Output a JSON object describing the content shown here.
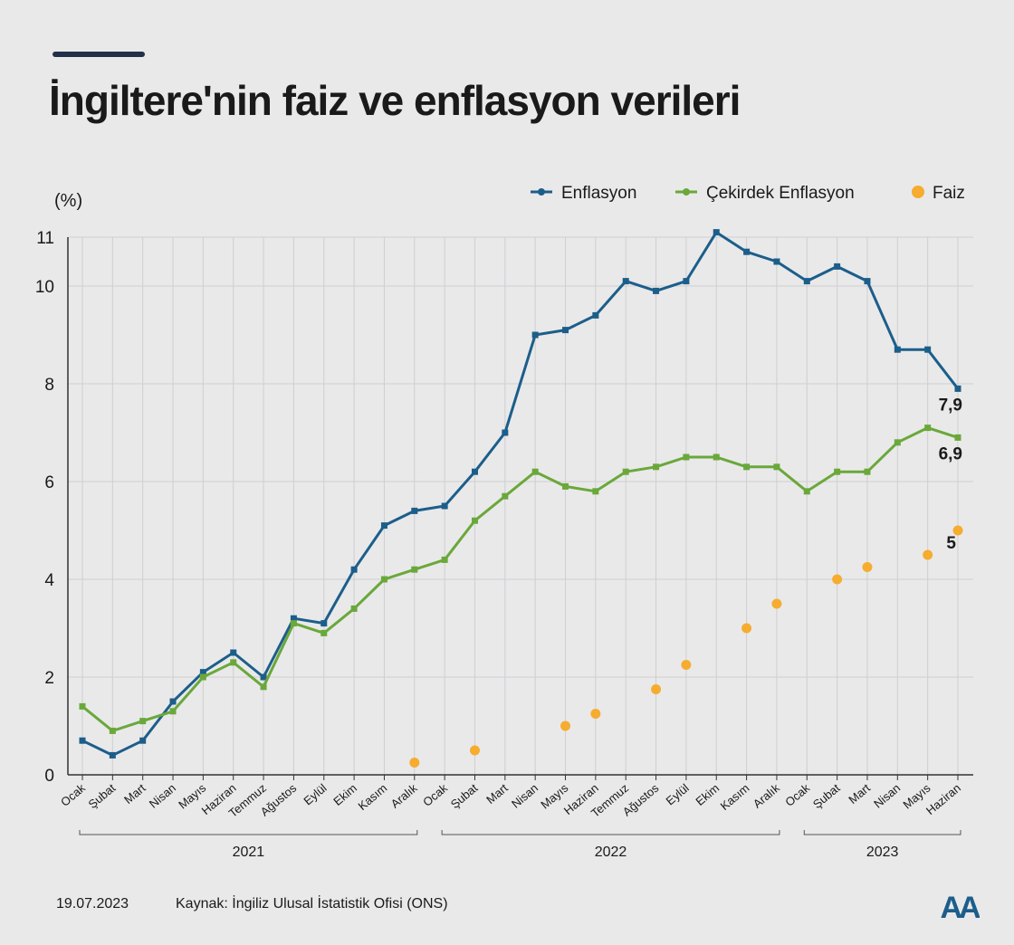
{
  "title": "İngiltere'nin faiz ve enflasyon verileri",
  "colors": {
    "accent": "#22304a",
    "inflation": "#1c5e8a",
    "core": "#6aa83a",
    "rate": "#f6ac2f",
    "grid": "#cfcfd1",
    "axis": "#333333"
  },
  "footer": {
    "date": "19.07.2023",
    "source": "Kaynak: İngiliz Ulusal İstatistik Ofisi (ONS)"
  },
  "logo": {
    "text": "AA"
  },
  "chart_data": {
    "type": "line",
    "ylabel": "(%)",
    "ylim": [
      0,
      11
    ],
    "yticks": [
      0,
      2,
      4,
      6,
      8,
      10,
      11
    ],
    "grid": true,
    "legend_position": "top-right",
    "categories": [
      "Ocak",
      "Şubat",
      "Mart",
      "Nisan",
      "Mayıs",
      "Haziran",
      "Temmuz",
      "Ağustos",
      "Eylül",
      "Ekim",
      "Kasım",
      "Aralık",
      "Ocak",
      "Şubat",
      "Mart",
      "Nisan",
      "Mayıs",
      "Haziran",
      "Temmuz",
      "Ağustos",
      "Eylül",
      "Ekim",
      "Kasım",
      "Aralık",
      "Ocak",
      "Şubat",
      "Mart",
      "Nisan",
      "Mayıs",
      "Haziran"
    ],
    "year_groups": [
      {
        "label": "2021",
        "start": 0,
        "end": 11
      },
      {
        "label": "2022",
        "start": 12,
        "end": 23
      },
      {
        "label": "2023",
        "start": 24,
        "end": 29
      }
    ],
    "series": [
      {
        "name": "Enflasyon",
        "kind": "line",
        "color_key": "inflation",
        "values": [
          0.7,
          0.4,
          0.7,
          1.5,
          2.1,
          2.5,
          2.0,
          3.2,
          3.1,
          4.2,
          5.1,
          5.4,
          5.5,
          6.2,
          7.0,
          9.0,
          9.1,
          9.4,
          10.1,
          9.9,
          10.1,
          11.1,
          10.7,
          10.5,
          10.1,
          10.4,
          10.1,
          8.7,
          8.7,
          7.9
        ],
        "end_label": "7,9"
      },
      {
        "name": "Çekirdek Enflasyon",
        "kind": "line",
        "color_key": "core",
        "values": [
          1.4,
          0.9,
          1.1,
          1.3,
          2.0,
          2.3,
          1.8,
          3.1,
          2.9,
          3.4,
          4.0,
          4.2,
          4.4,
          5.2,
          5.7,
          6.2,
          5.9,
          5.8,
          6.2,
          6.3,
          6.5,
          6.5,
          6.3,
          6.3,
          5.8,
          6.2,
          6.2,
          6.8,
          7.1,
          6.9
        ],
        "end_label": "6,9"
      },
      {
        "name": "Faiz",
        "kind": "dot",
        "color_key": "rate",
        "values": [
          null,
          null,
          null,
          null,
          null,
          null,
          null,
          null,
          null,
          null,
          null,
          0.25,
          null,
          0.5,
          null,
          null,
          1.0,
          1.25,
          null,
          1.75,
          2.25,
          null,
          3.0,
          3.5,
          null,
          4.0,
          4.25,
          null,
          4.5,
          5.0
        ],
        "end_label": "5"
      }
    ]
  }
}
